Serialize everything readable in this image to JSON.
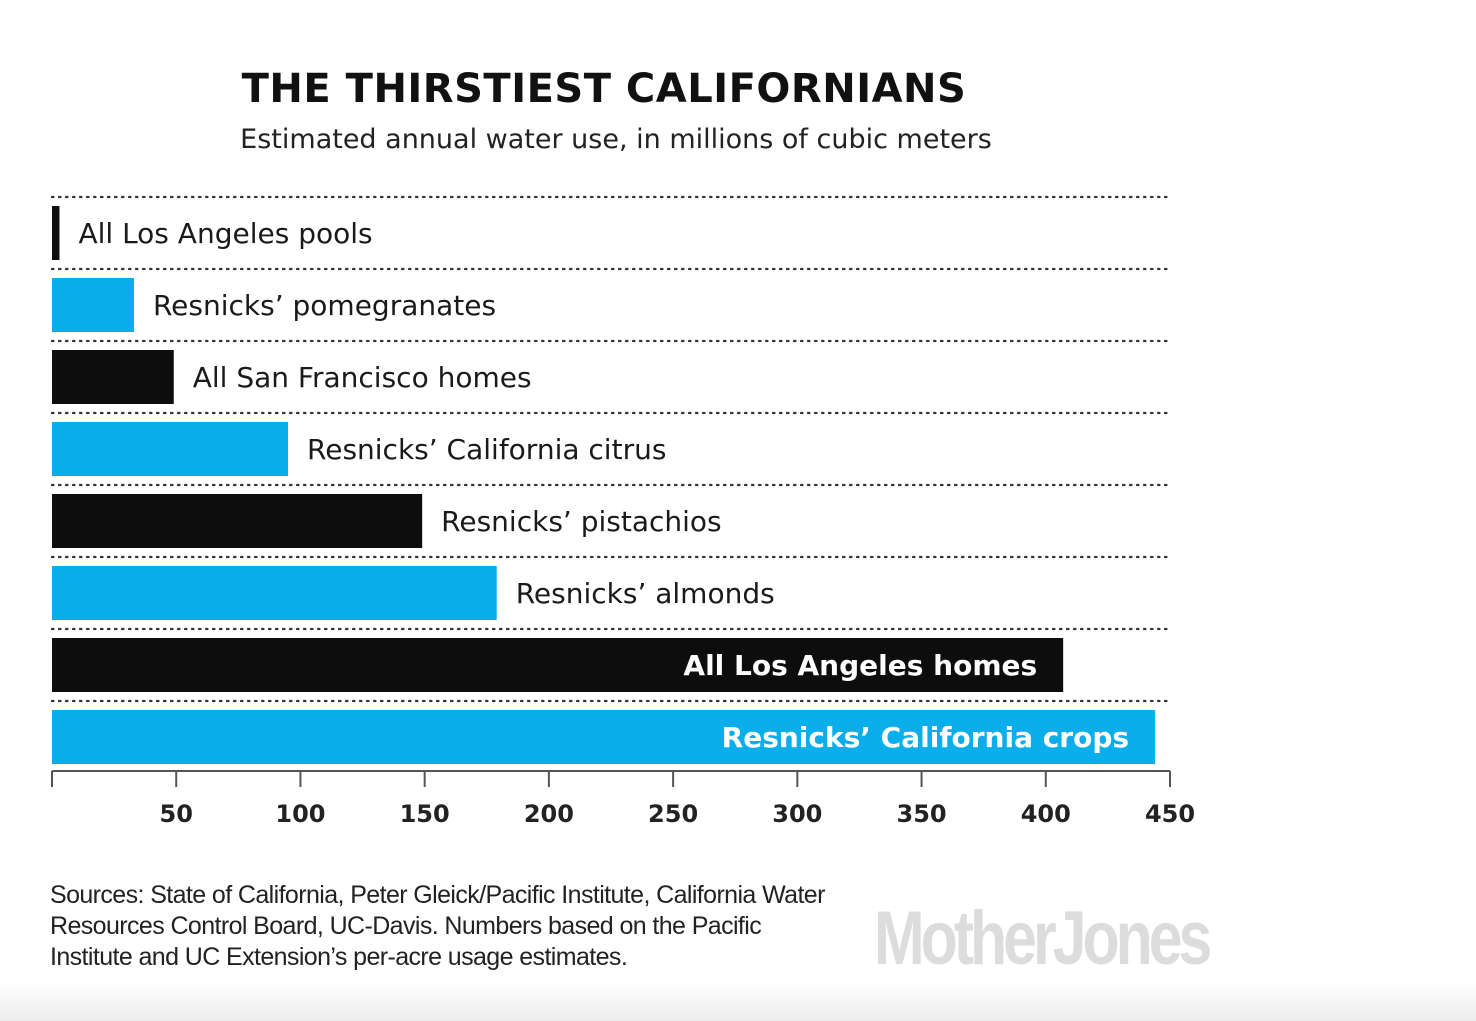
{
  "title": "THE THIRSTIEST CALIFORNIANS",
  "subtitle": "Estimated annual water use, in millions of cubic meters",
  "sources": "Sources: State of California, Peter Gleick/Pacific Institute, California Water Resources Control Board, UC-Davis. Numbers based on the Pacific Institute and UC Extension’s per-acre usage estimates.",
  "logo": "MotherJones",
  "colors": {
    "blue": "#0aaeea",
    "black": "#0d0d0d",
    "logo_gray": "#dcdcdc"
  },
  "chart_data": {
    "type": "bar",
    "orientation": "horizontal",
    "title": "THE THIRSTIEST CALIFORNIANS",
    "subtitle": "Estimated annual water use, in millions of cubic meters",
    "xlim": [
      0,
      450
    ],
    "xticks": [
      50,
      100,
      150,
      200,
      250,
      300,
      350,
      400,
      450
    ],
    "grid": "dotted separators between bars",
    "bars": [
      {
        "label": "All Los Angeles pools",
        "value": 3,
        "color": "black",
        "label_inside": false
      },
      {
        "label": "Resnicks’ pomegranates",
        "value": 33,
        "color": "blue",
        "label_inside": false
      },
      {
        "label": "All San Francisco homes",
        "value": 49,
        "color": "black",
        "label_inside": false
      },
      {
        "label": "Resnicks’ California citrus",
        "value": 95,
        "color": "blue",
        "label_inside": false
      },
      {
        "label": "Resnicks’ pistachios",
        "value": 149,
        "color": "black",
        "label_inside": false
      },
      {
        "label": "Resnicks’ almonds",
        "value": 179,
        "color": "blue",
        "label_inside": false
      },
      {
        "label": "All Los Angeles homes",
        "value": 407,
        "color": "black",
        "label_inside": true
      },
      {
        "label": "Resnicks’ California crops",
        "value": 444,
        "color": "blue",
        "label_inside": true
      }
    ]
  }
}
